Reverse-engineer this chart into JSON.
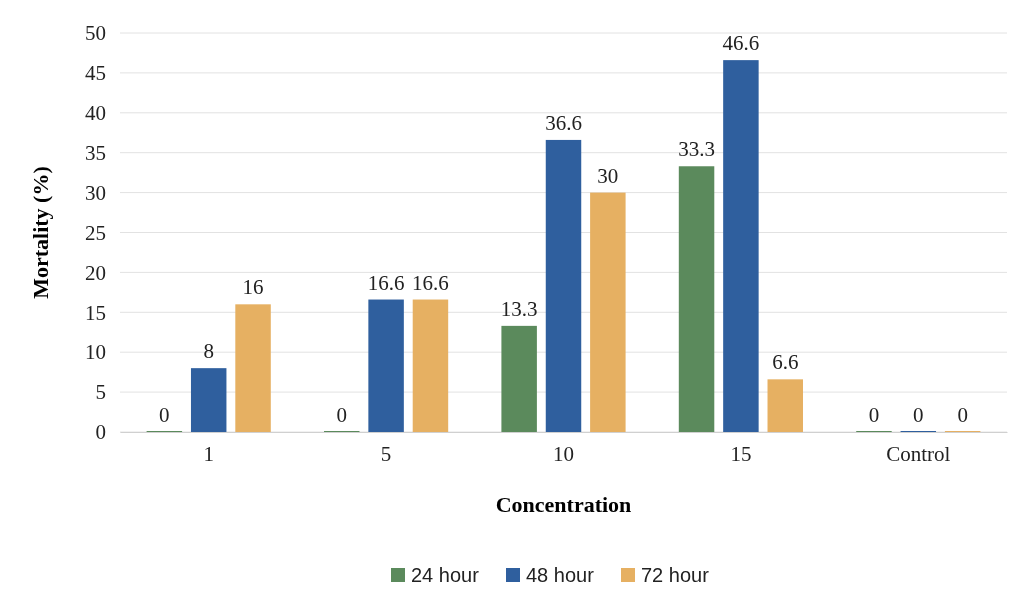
{
  "chart_data": {
    "type": "bar",
    "xlabel": "Concentration",
    "ylabel": "Mortality (%)",
    "categories": [
      "1",
      "5",
      "10",
      "15",
      "Control"
    ],
    "series": [
      {
        "name": "24 hour",
        "color": "#5b8a5c",
        "values": [
          0,
          0,
          13.3,
          33.3,
          0
        ]
      },
      {
        "name": "48 hour",
        "color": "#2f5f9e",
        "values": [
          8,
          16.6,
          36.6,
          46.6,
          0
        ]
      },
      {
        "name": "72 hour",
        "color": "#e6b062",
        "values": [
          16,
          16.6,
          30,
          6.6,
          0
        ]
      }
    ],
    "ylim": [
      0,
      50
    ],
    "yticks": [
      0,
      5,
      10,
      15,
      20,
      25,
      30,
      35,
      40,
      45,
      50
    ],
    "grid": "y",
    "legend": "bottom",
    "data_labels": true
  }
}
